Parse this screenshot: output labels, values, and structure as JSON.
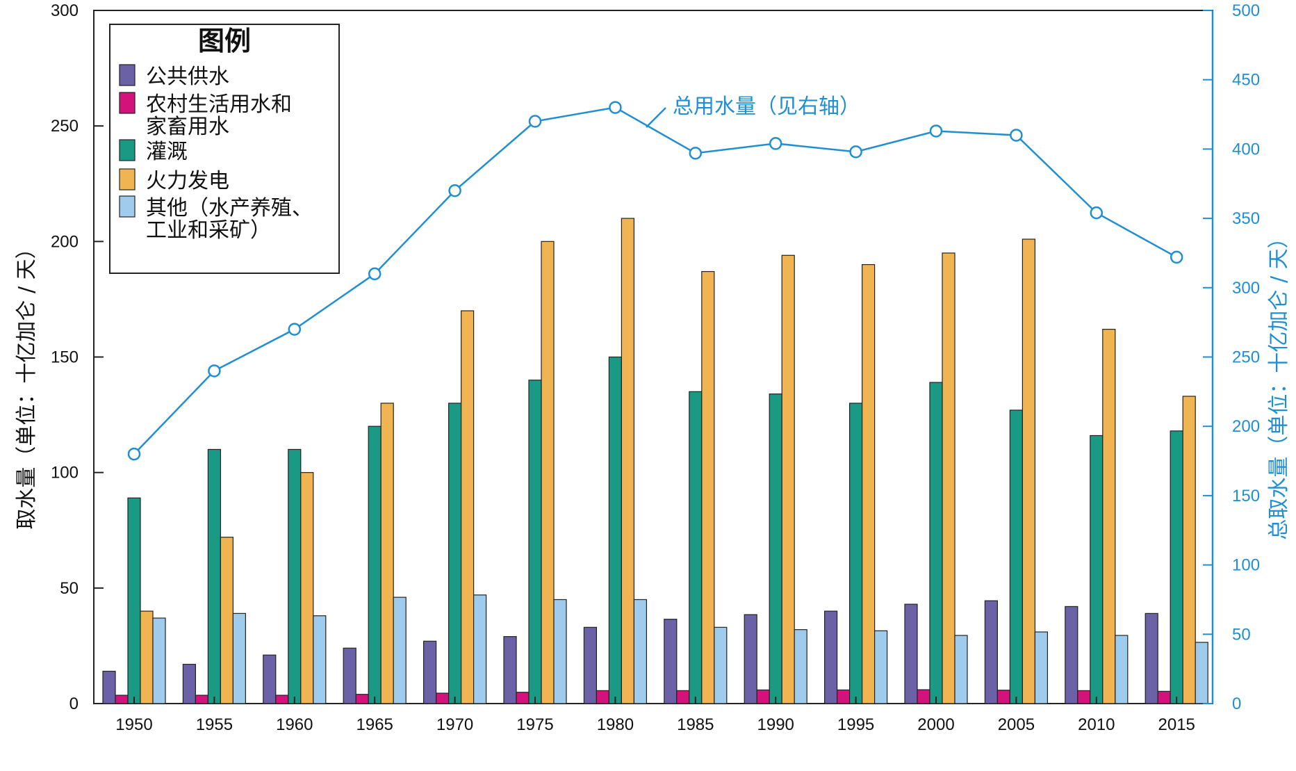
{
  "chart_data": {
    "type": "bar",
    "categories": [
      "1950",
      "1955",
      "1960",
      "1965",
      "1970",
      "1975",
      "1980",
      "1985",
      "1990",
      "1995",
      "2000",
      "2005",
      "2010",
      "2015"
    ],
    "series": [
      {
        "name": "公共供水",
        "color": "#6a61a6",
        "values": [
          14,
          17,
          21,
          24,
          27,
          29,
          33,
          36.5,
          38.5,
          40,
          43,
          44.5,
          42,
          39
        ]
      },
      {
        "name": "农村生活用水和家畜用水",
        "color": "#d4127b",
        "values": [
          3.6,
          3.6,
          3.6,
          4.0,
          4.5,
          4.9,
          5.6,
          5.6,
          5.9,
          5.9,
          6.0,
          5.8,
          5.6,
          5.3
        ]
      },
      {
        "name": "灌溉",
        "color": "#1a9a84",
        "values": [
          89,
          110,
          110,
          120,
          130,
          140,
          150,
          135,
          134,
          130,
          139,
          127,
          116,
          118
        ]
      },
      {
        "name": "火力发电",
        "color": "#f0b452",
        "values": [
          40,
          72,
          100,
          130,
          170,
          200,
          210,
          187,
          194,
          190,
          195,
          201,
          162,
          133
        ]
      },
      {
        "name": "其他（水产养殖、工业和采矿）",
        "color": "#9fcbec",
        "values": [
          37,
          39,
          38,
          46,
          47,
          45,
          45,
          33,
          32,
          31.5,
          29.5,
          31,
          29.5,
          26.5
        ]
      }
    ],
    "total_line": {
      "label": "总用水量（见右轴）",
      "color": "#1f8fd1",
      "values": [
        180,
        240,
        270,
        310,
        370,
        420,
        430,
        397,
        404,
        398,
        413,
        410,
        354,
        322
      ]
    },
    "legend": {
      "title": "图例",
      "position": "top-left",
      "entries": [
        {
          "lines": [
            "公共供水"
          ]
        },
        {
          "lines": [
            "农村生活用水和",
            "家畜用水"
          ]
        },
        {
          "lines": [
            "灌溉"
          ]
        },
        {
          "lines": [
            "火力发电"
          ]
        },
        {
          "lines": [
            "其他（水产养殖、",
            "工业和采矿）"
          ]
        }
      ]
    },
    "left_axis": {
      "label": "取水量（单位：十亿加仑 / 天）",
      "ylim": [
        0,
        300
      ],
      "ticks": [
        "0",
        "50",
        "100",
        "150",
        "200",
        "250",
        "300"
      ]
    },
    "right_axis": {
      "label": "总取水量（单位：十亿加仑 / 天）",
      "ylim": [
        0,
        500
      ],
      "ticks": [
        "0",
        "50",
        "100",
        "150",
        "200",
        "250",
        "300",
        "350",
        "400",
        "450",
        "500"
      ],
      "color": "#1f8fd1"
    },
    "grid": false
  }
}
